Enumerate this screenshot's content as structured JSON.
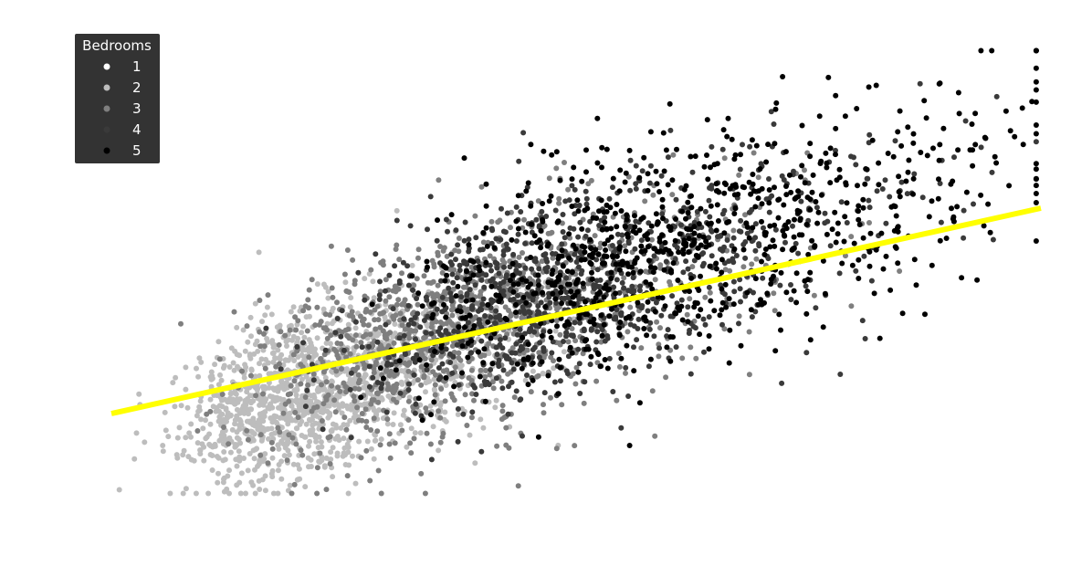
{
  "chart_data": {
    "type": "scatter",
    "title": "",
    "xlabel": "",
    "ylabel": "",
    "axes_visible": false,
    "grid": false,
    "xlim": [
      0,
      1
    ],
    "ylim": [
      0,
      1
    ],
    "legend": {
      "title": "Bedrooms",
      "placement": "top-left",
      "entries": [
        {
          "label": "1",
          "color": "#ffffff"
        },
        {
          "label": "2",
          "color": "#bdbdbd"
        },
        {
          "label": "3",
          "color": "#7f7f7f"
        },
        {
          "label": "4",
          "color": "#3a3a3a"
        },
        {
          "label": "5",
          "color": "#000000"
        }
      ]
    },
    "trend_line": {
      "color": "#ffff00",
      "x": [
        0.0,
        1.0
      ],
      "y": [
        0.19,
        0.64
      ]
    },
    "series": [
      {
        "name": "1",
        "color": "#ffffff",
        "center": [
          0.08,
          0.24
        ],
        "spread": [
          0.09,
          0.11
        ],
        "count": 380
      },
      {
        "name": "2",
        "color": "#bdbdbd",
        "center": [
          0.18,
          0.3
        ],
        "spread": [
          0.12,
          0.16
        ],
        "count": 1400
      },
      {
        "name": "3",
        "color": "#7f7f7f",
        "center": [
          0.32,
          0.38
        ],
        "spread": [
          0.17,
          0.19
        ],
        "count": 1200
      },
      {
        "name": "4",
        "color": "#3a3a3a",
        "center": [
          0.42,
          0.43
        ],
        "spread": [
          0.19,
          0.2
        ],
        "count": 1000
      },
      {
        "name": "5",
        "color": "#000000",
        "center": [
          0.52,
          0.47
        ],
        "spread": [
          0.22,
          0.21
        ],
        "count": 850
      }
    ]
  }
}
